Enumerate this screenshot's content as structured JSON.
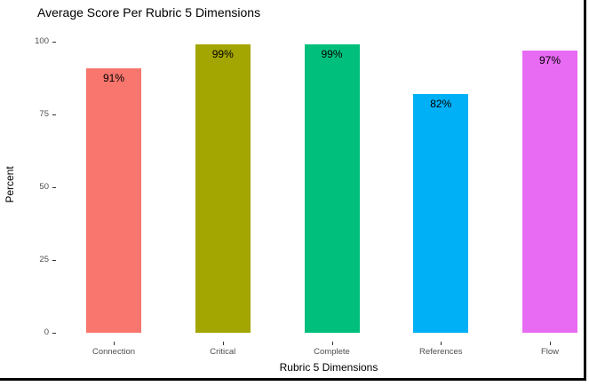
{
  "chart_data": {
    "type": "bar",
    "title": "Average Score Per Rubric 5 Dimensions",
    "xlabel": "Rubric 5 Dimensions",
    "ylabel": "Percent",
    "categories": [
      "Connection",
      "Critical",
      "Complete",
      "References",
      "Flow"
    ],
    "values": [
      91,
      99,
      99,
      82,
      97
    ],
    "value_labels": [
      "91%",
      "99%",
      "99%",
      "82%",
      "97%"
    ],
    "bar_colors": [
      "#F8766D",
      "#A3A500",
      "#00BF7D",
      "#00B0F6",
      "#E76BF3"
    ],
    "yticks": [
      0,
      25,
      50,
      75,
      100
    ],
    "ylim": [
      0,
      100
    ],
    "grid": "off",
    "legend": "none",
    "background": "#ffffff",
    "tick_label_color": "#4d4d4d",
    "frame_color": "#000000"
  }
}
